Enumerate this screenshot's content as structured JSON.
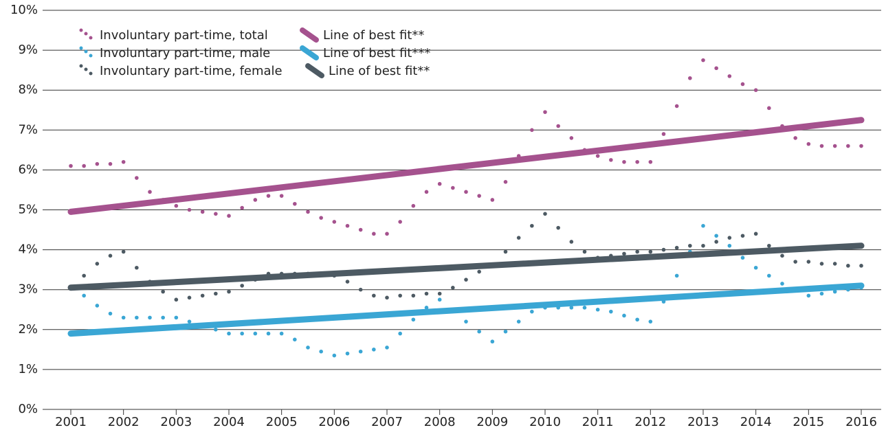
{
  "chart_data": {
    "type": "line",
    "x": [
      2001,
      2001.25,
      2001.5,
      2001.75,
      2002,
      2002.25,
      2002.5,
      2002.75,
      2003,
      2003.25,
      2003.5,
      2003.75,
      2004,
      2004.25,
      2004.5,
      2004.75,
      2005,
      2005.25,
      2005.5,
      2005.75,
      2006,
      2006.25,
      2006.5,
      2006.75,
      2007,
      2007.25,
      2007.5,
      2007.75,
      2008,
      2008.25,
      2008.5,
      2008.75,
      2009,
      2009.25,
      2009.5,
      2009.75,
      2010,
      2010.25,
      2010.5,
      2010.75,
      2011,
      2011.25,
      2011.5,
      2011.75,
      2012,
      2012.25,
      2012.5,
      2012.75,
      2013,
      2013.25,
      2013.5,
      2013.75,
      2014,
      2014.25,
      2014.5,
      2014.75,
      2015,
      2015.25,
      2015.5,
      2015.75,
      2016
    ],
    "series": [
      {
        "name": "Involuntary part-time, total",
        "color": "#a5528e",
        "style": "dots",
        "values": [
          6.1,
          6.1,
          6.15,
          6.15,
          6.2,
          5.8,
          5.45,
          5.25,
          5.1,
          5.0,
          4.95,
          4.9,
          4.85,
          5.05,
          5.25,
          5.35,
          5.35,
          5.15,
          4.95,
          4.8,
          4.7,
          4.6,
          4.5,
          4.4,
          4.4,
          4.7,
          5.1,
          5.45,
          5.65,
          5.55,
          5.45,
          5.35,
          5.25,
          5.7,
          6.35,
          7.0,
          7.45,
          7.1,
          6.8,
          6.5,
          6.35,
          6.25,
          6.2,
          6.2,
          6.2,
          6.9,
          7.6,
          8.3,
          8.75,
          8.55,
          8.35,
          8.15,
          8.0,
          7.55,
          7.1,
          6.8,
          6.65,
          6.6,
          6.6,
          6.6,
          6.6
        ]
      },
      {
        "name": "Involuntary part-time, male",
        "color": "#3aa6d4",
        "style": "dots",
        "values": [
          3.05,
          2.85,
          2.6,
          2.4,
          2.3,
          2.3,
          2.3,
          2.3,
          2.3,
          2.2,
          2.1,
          2.0,
          1.9,
          1.9,
          1.9,
          1.9,
          1.9,
          1.75,
          1.55,
          1.45,
          1.35,
          1.4,
          1.45,
          1.5,
          1.55,
          1.9,
          2.25,
          2.55,
          2.75,
          2.5,
          2.2,
          1.95,
          1.7,
          1.95,
          2.2,
          2.45,
          2.55,
          2.55,
          2.55,
          2.55,
          2.5,
          2.45,
          2.35,
          2.25,
          2.2,
          2.7,
          3.35,
          3.95,
          4.6,
          4.35,
          4.1,
          3.8,
          3.55,
          3.35,
          3.15,
          3.0,
          2.85,
          2.9,
          2.95,
          3.0,
          3.05
        ]
      },
      {
        "name": "Involuntary part-time, female",
        "color": "#4d5a63",
        "style": "dots",
        "values": [
          3.05,
          3.35,
          3.65,
          3.85,
          3.95,
          3.55,
          3.2,
          2.95,
          2.75,
          2.8,
          2.85,
          2.9,
          2.95,
          3.1,
          3.25,
          3.4,
          3.4,
          3.4,
          3.4,
          3.4,
          3.35,
          3.2,
          3.0,
          2.85,
          2.8,
          2.85,
          2.85,
          2.9,
          2.9,
          3.05,
          3.25,
          3.45,
          3.6,
          3.95,
          4.3,
          4.6,
          4.9,
          4.55,
          4.2,
          3.95,
          3.8,
          3.85,
          3.9,
          3.95,
          3.95,
          4.0,
          4.05,
          4.1,
          4.1,
          4.2,
          4.3,
          4.35,
          4.4,
          4.1,
          3.85,
          3.7,
          3.7,
          3.65,
          3.65,
          3.6,
          3.6
        ]
      },
      {
        "name": "Line of best fit**",
        "color": "#a5528e",
        "style": "fit",
        "x": [
          2001,
          2016
        ],
        "values": [
          4.95,
          7.25
        ]
      },
      {
        "name": "Line of best fit***",
        "color": "#3aa6d4",
        "style": "fit",
        "x": [
          2001,
          2016
        ],
        "values": [
          1.9,
          3.1
        ]
      },
      {
        "name": "Line of best fit**",
        "color": "#4d5a63",
        "style": "fit",
        "x": [
          2001,
          2016
        ],
        "values": [
          3.05,
          4.1
        ]
      }
    ],
    "xlim": [
      2001,
      2016
    ],
    "xticks": [
      2001,
      2002,
      2003,
      2004,
      2005,
      2006,
      2007,
      2008,
      2009,
      2010,
      2011,
      2012,
      2013,
      2014,
      2015,
      2016
    ],
    "ylim": [
      0,
      10
    ],
    "yticks": [
      {
        "value": 0,
        "label": "0%"
      },
      {
        "value": 1,
        "label": "1%"
      },
      {
        "value": 2,
        "label": "2%"
      },
      {
        "value": 3,
        "label": "3%"
      },
      {
        "value": 4,
        "label": "4%"
      },
      {
        "value": 5,
        "label": "5%"
      },
      {
        "value": 6,
        "label": "6%"
      },
      {
        "value": 7,
        "label": "7%"
      },
      {
        "value": 8,
        "label": "8%"
      },
      {
        "value": 9,
        "label": "9%"
      },
      {
        "value": 10,
        "label": "10%"
      }
    ],
    "grid": true,
    "legend": "upper left"
  }
}
